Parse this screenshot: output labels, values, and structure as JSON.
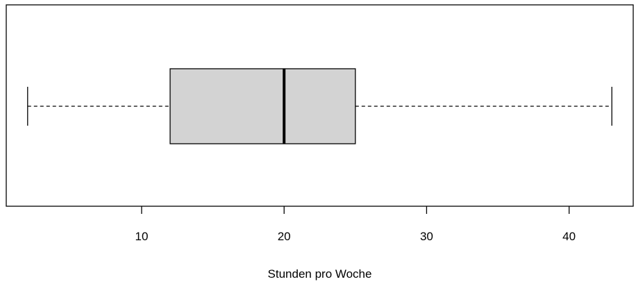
{
  "chart_data": {
    "type": "boxplot",
    "orientation": "horizontal",
    "xlabel": "Stunden pro Woche",
    "xlim": [
      0.5,
      44.5
    ],
    "x_ticks": [
      10,
      20,
      30,
      40
    ],
    "x_tick_labels": [
      "10",
      "20",
      "30",
      "40"
    ],
    "box": {
      "whisker_low": 2,
      "q1": 12,
      "median": 20,
      "q3": 25,
      "whisker_high": 43
    },
    "grid": false,
    "legend": "none",
    "box_fill": "#d3d3d3"
  }
}
